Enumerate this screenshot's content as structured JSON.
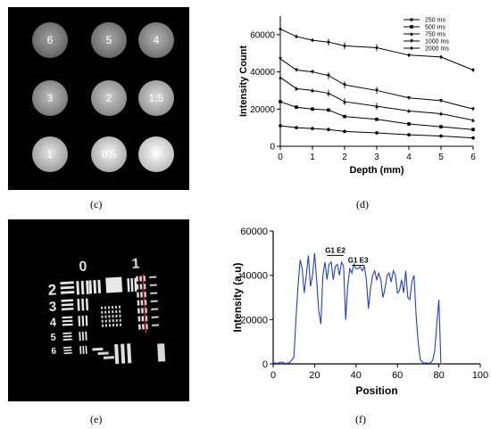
{
  "captions": {
    "c": "(c)",
    "d": "(d)",
    "e": "(e)",
    "f": "(f)"
  },
  "panel_c": {
    "labels": [
      "6",
      "5",
      "4",
      "3",
      "2",
      "1.5",
      "1",
      "0.5",
      "0"
    ],
    "brightness": [
      0.45,
      0.48,
      0.52,
      0.56,
      0.62,
      0.68,
      0.72,
      0.78,
      0.86
    ]
  },
  "panel_e": {
    "group_numbers": [
      "0",
      "1"
    ],
    "element_numbers": [
      "2",
      "3",
      "4",
      "5",
      "6"
    ]
  },
  "chart_data": [
    {
      "type": "line",
      "xlabel": "Depth (mm)",
      "ylabel": "Intensity Count",
      "xlim": [
        0,
        6
      ],
      "ylim": [
        0,
        70000
      ],
      "x_ticks": [
        "0",
        "1",
        "2",
        "3",
        "4",
        "5",
        "6"
      ],
      "y_ticks": [
        "0",
        "20000",
        "40000",
        "60000"
      ],
      "legend_position": "top-right",
      "x": [
        0,
        0.5,
        1,
        1.5,
        2,
        3,
        4,
        5,
        6
      ],
      "series": [
        {
          "name": "250 ms",
          "marker": "circle",
          "values": [
            11000,
            10000,
            9500,
            9000,
            8000,
            7200,
            6200,
            5500,
            4500
          ]
        },
        {
          "name": "500 ms",
          "marker": "square",
          "values": [
            24000,
            21000,
            20000,
            19500,
            16000,
            14500,
            12000,
            10500,
            9000
          ]
        },
        {
          "name": "750 ms",
          "marker": "triangle-up",
          "values": [
            37000,
            31000,
            30000,
            28500,
            24000,
            21500,
            19000,
            17500,
            14000
          ]
        },
        {
          "name": "1000 ms",
          "marker": "triangle-down",
          "values": [
            47000,
            41000,
            40000,
            38000,
            33000,
            30000,
            26000,
            24500,
            20000
          ]
        },
        {
          "name": "2000 ms",
          "marker": "diamond",
          "values": [
            63000,
            59000,
            57000,
            56000,
            54000,
            53000,
            49000,
            48000,
            41000
          ]
        }
      ]
    },
    {
      "type": "line",
      "xlabel": "Position",
      "ylabel": "Intensity (a.u)",
      "xlim": [
        0,
        100
      ],
      "ylim": [
        0,
        60000
      ],
      "x_ticks": [
        "0",
        "20",
        "40",
        "60",
        "80",
        "100"
      ],
      "y_ticks": [
        "0",
        "20000",
        "40000",
        "60000"
      ],
      "annotations": [
        {
          "label": "G1 E2",
          "x_start": 26,
          "x_end": 34,
          "y": 49000
        },
        {
          "label": "G1 E3",
          "x_start": 38,
          "x_end": 44,
          "y": 44500
        }
      ],
      "color": "#1f3fd6",
      "x": [
        0,
        2,
        4,
        6,
        8,
        10,
        11,
        12,
        13,
        14,
        15,
        16,
        17,
        18,
        19,
        20,
        21,
        22,
        23,
        24,
        25,
        26,
        27,
        28,
        29,
        30,
        31,
        32,
        33,
        34,
        35,
        36,
        37,
        38,
        39,
        40,
        41,
        42,
        43,
        44,
        45,
        46,
        47,
        48,
        49,
        50,
        51,
        52,
        53,
        54,
        55,
        56,
        57,
        58,
        59,
        60,
        61,
        62,
        63,
        64,
        65,
        66,
        67,
        68,
        69,
        70,
        71,
        72,
        73,
        74,
        75,
        76,
        77,
        78,
        79,
        80,
        81,
        82
      ],
      "values": [
        500,
        300,
        800,
        200,
        600,
        3000,
        20000,
        35000,
        47000,
        43000,
        32000,
        40000,
        49000,
        35000,
        40000,
        50000,
        38000,
        24000,
        18000,
        40000,
        46000,
        38000,
        45000,
        46000,
        38000,
        44000,
        45000,
        40000,
        46000,
        44000,
        20000,
        35000,
        43000,
        41000,
        45000,
        43000,
        43000,
        44000,
        42000,
        44000,
        38000,
        25000,
        34000,
        40000,
        42000,
        38000,
        41000,
        38000,
        30000,
        34000,
        40000,
        41000,
        37000,
        42000,
        40000,
        32000,
        33000,
        38000,
        32000,
        42000,
        30000,
        29000,
        37000,
        40000,
        22000,
        10000,
        2000,
        800,
        300,
        500,
        200,
        600,
        1500,
        6000,
        18000,
        29000,
        0,
        0
      ]
    }
  ]
}
